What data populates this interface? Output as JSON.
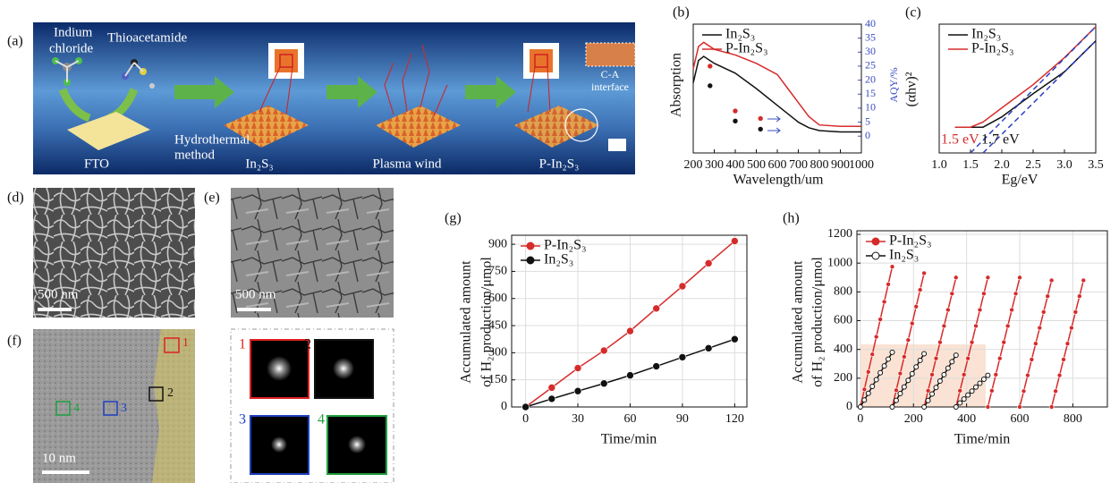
{
  "scheme": {
    "label": "(a)",
    "reagent1": [
      "Indium",
      "chloride"
    ],
    "reagent2": "Thioacetamide",
    "step1": [
      "Hydrothermal",
      "method"
    ],
    "substrate": "FTO",
    "product1": "In₂S₃",
    "step2": "Plasma wind",
    "product2": "P-In₂S₃",
    "inset": [
      "C-A",
      "interface"
    ]
  },
  "sem": [
    {
      "label": "(d)",
      "scale": "500 nm"
    },
    {
      "label": "(e)",
      "scale": "500 nm"
    }
  ],
  "tem": {
    "label": "(f)",
    "regions": [
      "1",
      "2",
      "3",
      "4"
    ],
    "scale": "10 nm"
  },
  "fft": {
    "regions": [
      "1",
      "2",
      "3",
      "4"
    ]
  },
  "chart_data": [
    {
      "type": "line",
      "label": "(b)",
      "xlabel": "Wavelength/um",
      "ylabel": "Absorption",
      "y2label": "AQY/%",
      "y2_color": "#3b4cc0",
      "x": [
        200,
        225,
        250,
        300,
        400,
        500,
        600,
        650,
        700,
        750,
        800,
        900,
        1000
      ],
      "xlim": [
        200,
        1000
      ],
      "xticks": [
        200,
        300,
        400,
        500,
        600,
        700,
        800,
        900,
        1000
      ],
      "ylim": [
        -6,
        40
      ],
      "y2lim": [
        -6,
        40
      ],
      "y2ticks": [
        0,
        5,
        10,
        15,
        20,
        25,
        30,
        35,
        40
      ],
      "grid": false,
      "legend": "upper left",
      "series": [
        {
          "name": "In₂S₃",
          "color": "#111111",
          "values": [
            19,
            27,
            28.5,
            26,
            22.5,
            17,
            11,
            8,
            5,
            3,
            2,
            1.5,
            1.5
          ]
        },
        {
          "name": "P-In₂S₃",
          "color": "#d62b2b",
          "values": [
            24,
            32,
            33.5,
            31,
            29,
            26,
            22,
            17,
            12,
            7,
            4,
            3.5,
            3.5
          ]
        },
        {
          "color": "#d62b2b",
          "x": [
            280,
            400,
            520
          ],
          "values": [
            25,
            9,
            6.3
          ],
          "axis": "y2",
          "line": false,
          "marker": "circle"
        },
        {
          "color": "#111111",
          "x": [
            280,
            400,
            520
          ],
          "values": [
            18,
            5.4,
            2.5
          ],
          "axis": "y2",
          "line": false,
          "marker": "circle"
        }
      ]
    },
    {
      "type": "line",
      "label": "(c)",
      "xlabel": "Eg/eV",
      "ylabel": "(αhν)²",
      "x": [
        1.25,
        1.5,
        1.7,
        2.0,
        2.5,
        3.0,
        3.5
      ],
      "xlim": [
        1.0,
        3.5
      ],
      "xticks": [
        {
          "value": 1,
          "label": "1.0"
        },
        1.5,
        {
          "value": 2,
          "label": "2.0"
        },
        2.5,
        {
          "value": 3,
          "label": "3.0"
        },
        3.5
      ],
      "ylim": [
        0,
        1
      ],
      "grid": false,
      "legend": "upper left",
      "series": [
        {
          "name": "In₂S₃",
          "color": "#111111",
          "values": [
            0.2,
            0.2,
            0.2,
            0.28,
            0.46,
            0.63,
            0.87
          ]
        },
        {
          "name": "P-In₂S₃",
          "color": "#d62b2b",
          "values": [
            0.2,
            0.2,
            0.24,
            0.35,
            0.53,
            0.74,
            0.98
          ]
        },
        {
          "color": "#2b3fbf",
          "x": [
            1.5,
            3.5
          ],
          "values": [
            0,
            0.98
          ],
          "dash": true
        },
        {
          "color": "#2b3fbf",
          "x": [
            1.7,
            3.5
          ],
          "values": [
            0,
            0.87
          ],
          "dash": true
        }
      ],
      "annotations": [
        {
          "text": "1.5 eV",
          "color": "#d62b2b"
        },
        {
          "text": "1.7 eV",
          "color": "#111111"
        }
      ]
    },
    {
      "type": "line",
      "label": "(g)",
      "xlabel": "Time/min",
      "ylabel": [
        "Accumulated amount",
        "of H₂ production/μmol"
      ],
      "x": [
        0,
        15,
        30,
        45,
        60,
        75,
        90,
        105,
        120
      ],
      "xlim": [
        -8,
        127
      ],
      "xticks": [
        0,
        30,
        60,
        90,
        120
      ],
      "ylim": [
        0,
        950
      ],
      "yticks": [
        0,
        150,
        300,
        450,
        600,
        750,
        900
      ],
      "grid": true,
      "legend": "upper left",
      "series": [
        {
          "name": "P-In₂S₃",
          "color": "#d62b2b",
          "marker": "circle",
          "values": [
            0,
            107,
            215,
            312,
            420,
            545,
            668,
            795,
            918
          ]
        },
        {
          "name": "In₂S₃",
          "color": "#111111",
          "marker": "circle",
          "values": [
            0,
            45,
            88,
            130,
            175,
            225,
            275,
            325,
            375
          ]
        }
      ]
    },
    {
      "type": "line",
      "label": "(h)",
      "xlabel": "Time/min",
      "ylabel": [
        "Accumulated amount",
        "of H₂ production/μmol"
      ],
      "xlim": [
        -13,
        930
      ],
      "xticks": [
        0,
        200,
        400,
        600,
        800
      ],
      "ylim": [
        0,
        1225
      ],
      "yticks": [
        0,
        200,
        400,
        600,
        800,
        1000,
        1200
      ],
      "grid": true,
      "legend": "upper left",
      "series": [
        {
          "name": "P-In₂S₃",
          "color": "#d62b2b",
          "marker": "circle",
          "x": [
            0,
            15,
            30,
            45,
            60,
            75,
            90,
            105,
            120,
            null,
            120,
            135,
            150,
            165,
            180,
            195,
            210,
            225,
            240,
            null,
            240,
            255,
            270,
            285,
            300,
            315,
            330,
            345,
            360,
            null,
            360,
            375,
            390,
            405,
            420,
            435,
            450,
            465,
            480,
            null,
            480,
            495,
            510,
            525,
            540,
            555,
            570,
            585,
            600,
            null,
            600,
            615,
            630,
            645,
            660,
            675,
            690,
            705,
            720,
            null,
            720,
            735,
            750,
            765,
            780,
            795,
            810,
            825,
            840
          ],
          "values": [
            0,
            122,
            244,
            366,
            488,
            609,
            731,
            853,
            975,
            null,
            0,
            116,
            233,
            349,
            465,
            581,
            698,
            814,
            930,
            null,
            0,
            113,
            225,
            338,
            450,
            563,
            675,
            788,
            900,
            null,
            0,
            113,
            225,
            338,
            450,
            563,
            675,
            788,
            900,
            null,
            0,
            113,
            225,
            338,
            450,
            563,
            675,
            788,
            900,
            null,
            0,
            110,
            220,
            330,
            440,
            550,
            660,
            770,
            880,
            null,
            0,
            110,
            220,
            330,
            440,
            550,
            660,
            770,
            880
          ]
        },
        {
          "name": "In₂S₃",
          "color": "#111111",
          "marker": "open-circle",
          "x": [
            0,
            15,
            30,
            45,
            60,
            75,
            90,
            105,
            120,
            null,
            120,
            135,
            150,
            165,
            180,
            195,
            210,
            225,
            240,
            null,
            240,
            255,
            270,
            285,
            300,
            315,
            330,
            345,
            360,
            null,
            360,
            375,
            390,
            405,
            420,
            435,
            450,
            465,
            480
          ],
          "values": [
            0,
            48,
            95,
            143,
            190,
            238,
            285,
            333,
            380,
            null,
            0,
            46,
            93,
            139,
            185,
            231,
            278,
            324,
            370,
            null,
            0,
            45,
            90,
            135,
            180,
            225,
            270,
            315,
            360,
            null,
            0,
            28,
            55,
            83,
            110,
            138,
            165,
            193,
            220
          ]
        }
      ]
    }
  ]
}
